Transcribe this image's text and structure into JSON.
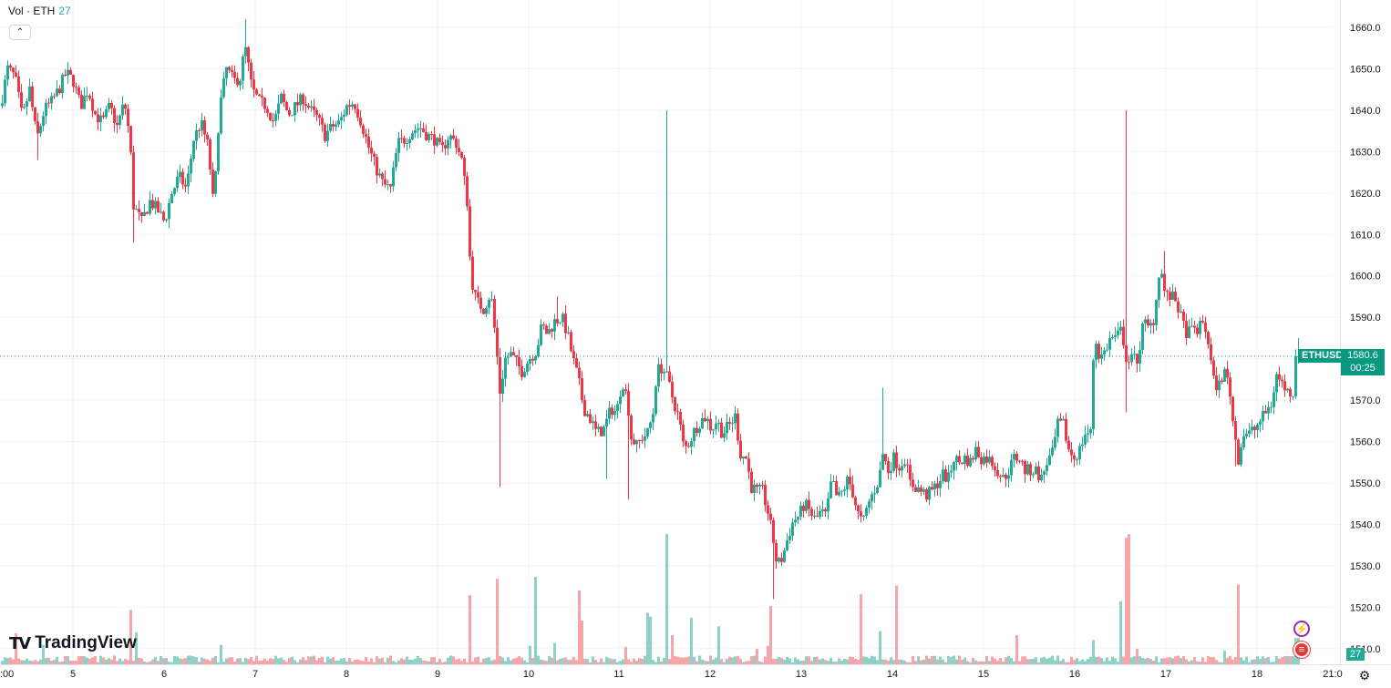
{
  "legend": {
    "label": "Vol · ETH",
    "value": "27"
  },
  "collapse_icon": "chevron-up-icon",
  "logo_text": "TradingView",
  "logo_mark": "TV",
  "price_tag": {
    "symbol": "ETHUSD",
    "price": "1580.6",
    "countdown": "00:25"
  },
  "volume_tag": "27",
  "colors": {
    "up": "#22ab94",
    "down": "#f23645",
    "up_vol": "#8fd1c6",
    "down_vol": "#f6a5a9",
    "grid": "#f0f3fa"
  },
  "chart_data": {
    "type": "candlestick",
    "symbol": "ETHUSD",
    "ylim": [
      1502,
      1664
    ],
    "y_ticks": [
      "1510.0",
      "1520.0",
      "1530.0",
      "1540.0",
      "1550.0",
      "1560.0",
      "1570.0",
      "1580.0",
      "1590.0",
      "1600.0",
      "1610.0",
      "1620.0",
      "1630.0",
      "1640.0",
      "1650.0",
      "1660.0"
    ],
    "x_ticks": [
      ":00",
      "5",
      "6",
      "7",
      "8",
      "9",
      "10",
      "11",
      "12",
      "13",
      "14",
      "15",
      "16",
      "17",
      "18",
      "21:0"
    ],
    "last_price": 1580.6,
    "volume_last": 27,
    "volume_max": 150,
    "ohlc_path": [
      [
        0,
        1641
      ],
      [
        8,
        1650
      ],
      [
        16,
        1648
      ],
      [
        24,
        1638
      ],
      [
        32,
        1645
      ],
      [
        40,
        1633
      ],
      [
        48,
        1640
      ],
      [
        56,
        1642
      ],
      [
        64,
        1645
      ],
      [
        72,
        1649
      ],
      [
        80,
        1647
      ],
      [
        88,
        1641
      ],
      [
        96,
        1645
      ],
      [
        104,
        1639
      ],
      [
        112,
        1637
      ],
      [
        120,
        1641
      ],
      [
        128,
        1636
      ],
      [
        136,
        1642
      ],
      [
        142,
        1633
      ],
      [
        146,
        1617
      ],
      [
        155,
        1613
      ],
      [
        164,
        1618
      ],
      [
        172,
        1616
      ],
      [
        180,
        1613
      ],
      [
        188,
        1620
      ],
      [
        196,
        1624
      ],
      [
        204,
        1621
      ],
      [
        212,
        1633
      ],
      [
        220,
        1637
      ],
      [
        228,
        1631
      ],
      [
        234,
        1616
      ],
      [
        240,
        1640
      ],
      [
        248,
        1650
      ],
      [
        256,
        1647
      ],
      [
        264,
        1648
      ],
      [
        268,
        1656
      ],
      [
        276,
        1645
      ],
      [
        284,
        1642
      ],
      [
        292,
        1641
      ],
      [
        300,
        1637
      ],
      [
        308,
        1643
      ],
      [
        316,
        1639
      ],
      [
        324,
        1641
      ],
      [
        332,
        1643
      ],
      [
        340,
        1640
      ],
      [
        348,
        1638
      ],
      [
        356,
        1634
      ],
      [
        364,
        1636
      ],
      [
        372,
        1637
      ],
      [
        380,
        1641
      ],
      [
        388,
        1642
      ],
      [
        396,
        1637
      ],
      [
        404,
        1631
      ],
      [
        412,
        1626
      ],
      [
        420,
        1622
      ],
      [
        428,
        1621
      ],
      [
        436,
        1632
      ],
      [
        444,
        1633
      ],
      [
        452,
        1635
      ],
      [
        460,
        1636
      ],
      [
        468,
        1634
      ],
      [
        476,
        1633
      ],
      [
        484,
        1630
      ],
      [
        492,
        1634
      ],
      [
        500,
        1632
      ],
      [
        506,
        1628
      ],
      [
        512,
        1618
      ],
      [
        516,
        1600
      ],
      [
        522,
        1594
      ],
      [
        530,
        1592
      ],
      [
        538,
        1596
      ],
      [
        544,
        1583
      ],
      [
        548,
        1572
      ],
      [
        554,
        1580
      ],
      [
        560,
        1581
      ],
      [
        566,
        1579
      ],
      [
        572,
        1577
      ],
      [
        580,
        1580
      ],
      [
        588,
        1582
      ],
      [
        594,
        1588
      ],
      [
        600,
        1586
      ],
      [
        608,
        1589
      ],
      [
        616,
        1590
      ],
      [
        622,
        1586
      ],
      [
        628,
        1580
      ],
      [
        634,
        1575
      ],
      [
        640,
        1568
      ],
      [
        646,
        1566
      ],
      [
        654,
        1562
      ],
      [
        662,
        1563
      ],
      [
        670,
        1568
      ],
      [
        676,
        1567
      ],
      [
        682,
        1575
      ],
      [
        688,
        1570
      ],
      [
        692,
        1561
      ],
      [
        698,
        1559
      ],
      [
        704,
        1561
      ],
      [
        710,
        1562
      ],
      [
        716,
        1567
      ],
      [
        720,
        1577
      ],
      [
        726,
        1578
      ],
      [
        732,
        1575
      ],
      [
        738,
        1570
      ],
      [
        744,
        1566
      ],
      [
        750,
        1558
      ],
      [
        756,
        1560
      ],
      [
        762,
        1563
      ],
      [
        768,
        1565
      ],
      [
        774,
        1566
      ],
      [
        780,
        1563
      ],
      [
        786,
        1565
      ],
      [
        792,
        1562
      ],
      [
        800,
        1564
      ],
      [
        806,
        1566
      ],
      [
        812,
        1557
      ],
      [
        818,
        1556
      ],
      [
        824,
        1549
      ],
      [
        830,
        1548
      ],
      [
        836,
        1548
      ],
      [
        842,
        1543
      ],
      [
        848,
        1536
      ],
      [
        852,
        1530
      ],
      [
        858,
        1532
      ],
      [
        864,
        1537
      ],
      [
        870,
        1541
      ],
      [
        876,
        1542
      ],
      [
        882,
        1545
      ],
      [
        888,
        1543
      ],
      [
        894,
        1541
      ],
      [
        900,
        1543
      ],
      [
        906,
        1542
      ],
      [
        912,
        1551
      ],
      [
        918,
        1546
      ],
      [
        924,
        1548
      ],
      [
        930,
        1551
      ],
      [
        936,
        1547
      ],
      [
        940,
        1543
      ],
      [
        946,
        1540
      ],
      [
        952,
        1545
      ],
      [
        958,
        1548
      ],
      [
        964,
        1551
      ],
      [
        968,
        1557
      ],
      [
        974,
        1553
      ],
      [
        980,
        1556
      ],
      [
        986,
        1554
      ],
      [
        992,
        1556
      ],
      [
        998,
        1550
      ],
      [
        1004,
        1549
      ],
      [
        1010,
        1548
      ],
      [
        1016,
        1547
      ],
      [
        1022,
        1548
      ],
      [
        1028,
        1550
      ],
      [
        1034,
        1552
      ],
      [
        1040,
        1551
      ],
      [
        1046,
        1556
      ],
      [
        1052,
        1555
      ],
      [
        1058,
        1556
      ],
      [
        1064,
        1555
      ],
      [
        1070,
        1558
      ],
      [
        1076,
        1556
      ],
      [
        1082,
        1556
      ],
      [
        1088,
        1555
      ],
      [
        1094,
        1553
      ],
      [
        1100,
        1551
      ],
      [
        1106,
        1553
      ],
      [
        1112,
        1556
      ],
      [
        1118,
        1556
      ],
      [
        1124,
        1553
      ],
      [
        1130,
        1553
      ],
      [
        1136,
        1553
      ],
      [
        1142,
        1551
      ],
      [
        1148,
        1555
      ],
      [
        1154,
        1557
      ],
      [
        1160,
        1564
      ],
      [
        1166,
        1564
      ],
      [
        1172,
        1558
      ],
      [
        1178,
        1556
      ],
      [
        1184,
        1558
      ],
      [
        1190,
        1562
      ],
      [
        1196,
        1562
      ],
      [
        1200,
        1586
      ],
      [
        1206,
        1580
      ],
      [
        1212,
        1582
      ],
      [
        1218,
        1585
      ],
      [
        1224,
        1585
      ],
      [
        1230,
        1587
      ],
      [
        1236,
        1579
      ],
      [
        1242,
        1580
      ],
      [
        1248,
        1580
      ],
      [
        1254,
        1589
      ],
      [
        1260,
        1587
      ],
      [
        1266,
        1590
      ],
      [
        1272,
        1603
      ],
      [
        1278,
        1595
      ],
      [
        1284,
        1595
      ],
      [
        1290,
        1594
      ],
      [
        1296,
        1589
      ],
      [
        1302,
        1586
      ],
      [
        1308,
        1587
      ],
      [
        1314,
        1587
      ],
      [
        1320,
        1589
      ],
      [
        1326,
        1583
      ],
      [
        1330,
        1575
      ],
      [
        1336,
        1573
      ],
      [
        1342,
        1577
      ],
      [
        1348,
        1574
      ],
      [
        1352,
        1565
      ],
      [
        1358,
        1556
      ],
      [
        1364,
        1562
      ],
      [
        1370,
        1562
      ],
      [
        1376,
        1563
      ],
      [
        1382,
        1565
      ],
      [
        1388,
        1567
      ],
      [
        1394,
        1569
      ],
      [
        1400,
        1576
      ],
      [
        1406,
        1574
      ],
      [
        1412,
        1572
      ],
      [
        1418,
        1572
      ],
      [
        1422,
        1580
      ]
    ],
    "wicks": [
      [
        268,
        1662
      ],
      [
        146,
        1608
      ],
      [
        548,
        1549
      ],
      [
        730,
        1640
      ],
      [
        848,
        1522
      ],
      [
        1234,
        1640
      ],
      [
        1234,
        1567
      ],
      [
        968,
        1573
      ],
      [
        1276,
        1606
      ],
      [
        1356,
        1554
      ],
      [
        1424,
        1585
      ],
      [
        40,
        1628
      ],
      [
        664,
        1551
      ],
      [
        688,
        1546
      ],
      [
        612,
        1595
      ],
      [
        518,
        1601
      ]
    ],
    "volume_spikes": [
      [
        16,
        32
      ],
      [
        48,
        20
      ],
      [
        144,
        56
      ],
      [
        148,
        33
      ],
      [
        242,
        20
      ],
      [
        516,
        71
      ],
      [
        546,
        88
      ],
      [
        580,
        19
      ],
      [
        588,
        90
      ],
      [
        608,
        22
      ],
      [
        634,
        76
      ],
      [
        638,
        45
      ],
      [
        686,
        18
      ],
      [
        710,
        53
      ],
      [
        714,
        49
      ],
      [
        730,
        134
      ],
      [
        736,
        30
      ],
      [
        758,
        48
      ],
      [
        788,
        39
      ],
      [
        830,
        16
      ],
      [
        842,
        19
      ],
      [
        846,
        60
      ],
      [
        944,
        72
      ],
      [
        966,
        34
      ],
      [
        984,
        81
      ],
      [
        1116,
        30
      ],
      [
        1200,
        25
      ],
      [
        1230,
        65
      ],
      [
        1234,
        130
      ],
      [
        1238,
        134
      ],
      [
        1246,
        16
      ],
      [
        1358,
        82
      ],
      [
        1342,
        14
      ]
    ]
  }
}
